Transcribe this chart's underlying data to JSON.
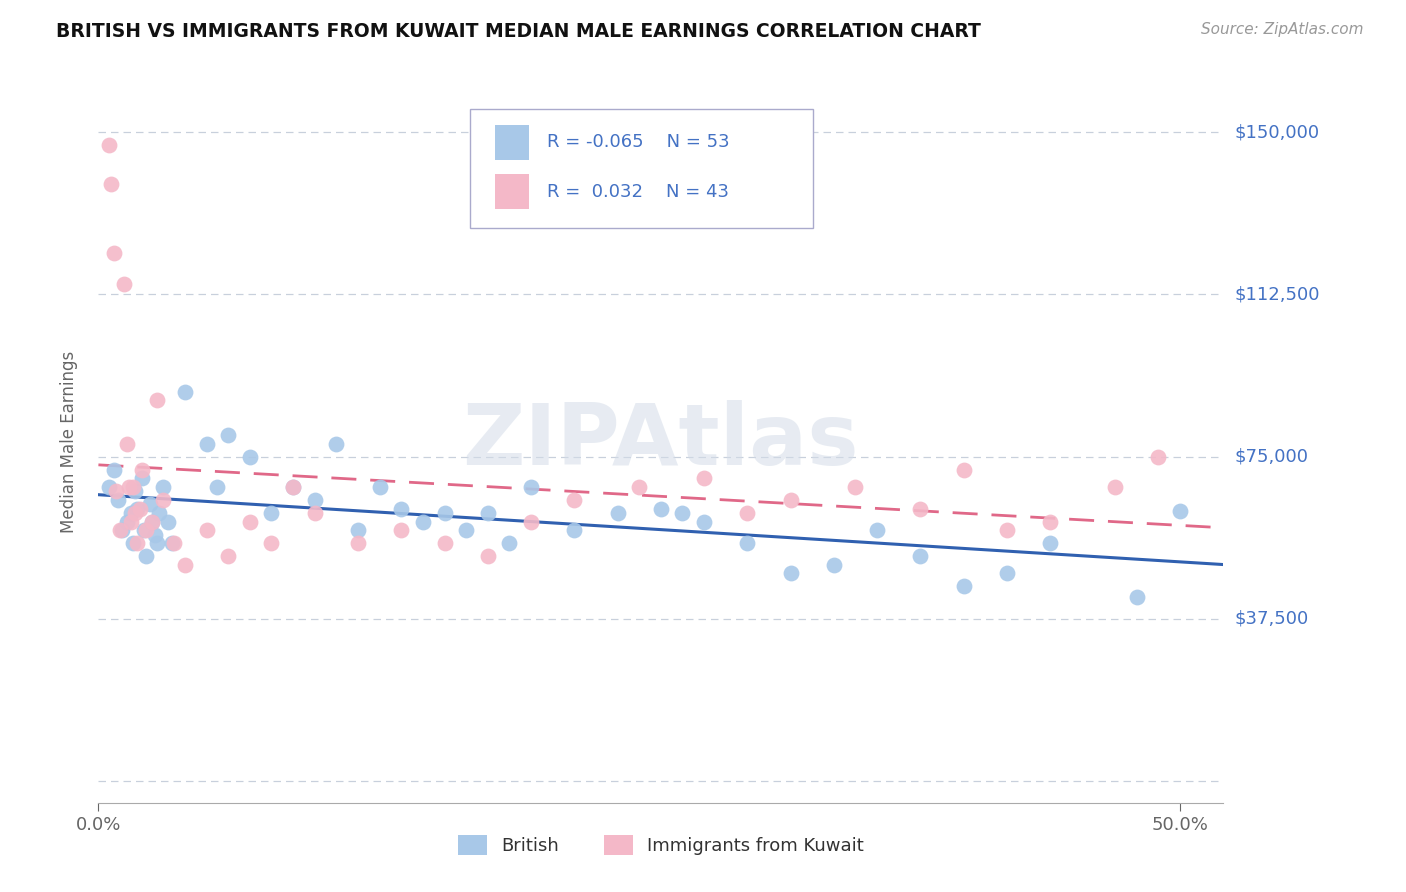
{
  "title": "BRITISH VS IMMIGRANTS FROM KUWAIT MEDIAN MALE EARNINGS CORRELATION CHART",
  "source_text": "Source: ZipAtlas.com",
  "ylabel": "Median Male Earnings",
  "xlim": [
    0.0,
    0.52
  ],
  "ylim": [
    -5000,
    162000
  ],
  "yticks": [
    0,
    37500,
    75000,
    112500,
    150000
  ],
  "ytick_labels": [
    "",
    "$37,500",
    "$75,000",
    "$112,500",
    "$150,000"
  ],
  "british_color": "#a8c8e8",
  "kuwait_color": "#f4b8c8",
  "british_line_color": "#3060b0",
  "kuwait_line_color": "#e06888",
  "british_R": -0.065,
  "british_N": 53,
  "kuwait_R": 0.032,
  "kuwait_N": 43,
  "axis_label_color": "#4472c4",
  "grid_color": "#c8d0dc",
  "background_color": "#ffffff",
  "watermark": "ZIPAtlas",
  "british_x": [
    0.005,
    0.007,
    0.009,
    0.011,
    0.013,
    0.015,
    0.016,
    0.017,
    0.018,
    0.02,
    0.021,
    0.022,
    0.024,
    0.025,
    0.026,
    0.027,
    0.028,
    0.03,
    0.032,
    0.034,
    0.04,
    0.05,
    0.055,
    0.06,
    0.07,
    0.08,
    0.09,
    0.1,
    0.11,
    0.12,
    0.13,
    0.14,
    0.15,
    0.16,
    0.17,
    0.18,
    0.19,
    0.2,
    0.22,
    0.24,
    0.26,
    0.28,
    0.3,
    0.32,
    0.34,
    0.36,
    0.38,
    0.4,
    0.42,
    0.44,
    0.27,
    0.48,
    0.5
  ],
  "british_y": [
    68000,
    72000,
    65000,
    58000,
    60000,
    62000,
    55000,
    67000,
    63000,
    70000,
    58000,
    52000,
    64000,
    60000,
    57000,
    55000,
    62000,
    68000,
    60000,
    55000,
    90000,
    78000,
    68000,
    80000,
    75000,
    62000,
    68000,
    65000,
    78000,
    58000,
    68000,
    63000,
    60000,
    62000,
    58000,
    62000,
    55000,
    68000,
    58000,
    62000,
    63000,
    60000,
    55000,
    48000,
    50000,
    58000,
    52000,
    45000,
    48000,
    55000,
    62000,
    42500,
    62500
  ],
  "kuwait_x": [
    0.005,
    0.006,
    0.007,
    0.008,
    0.01,
    0.012,
    0.013,
    0.014,
    0.015,
    0.016,
    0.017,
    0.018,
    0.019,
    0.02,
    0.022,
    0.025,
    0.027,
    0.03,
    0.035,
    0.04,
    0.05,
    0.06,
    0.07,
    0.08,
    0.09,
    0.1,
    0.12,
    0.14,
    0.16,
    0.18,
    0.2,
    0.22,
    0.25,
    0.28,
    0.3,
    0.32,
    0.35,
    0.38,
    0.4,
    0.42,
    0.44,
    0.47,
    0.49
  ],
  "kuwait_y": [
    147000,
    138000,
    122000,
    67000,
    58000,
    115000,
    78000,
    68000,
    60000,
    68000,
    62000,
    55000,
    63000,
    72000,
    58000,
    60000,
    88000,
    65000,
    55000,
    50000,
    58000,
    52000,
    60000,
    55000,
    68000,
    62000,
    55000,
    58000,
    55000,
    52000,
    60000,
    65000,
    68000,
    70000,
    62000,
    65000,
    68000,
    63000,
    72000,
    58000,
    60000,
    68000,
    75000
  ]
}
